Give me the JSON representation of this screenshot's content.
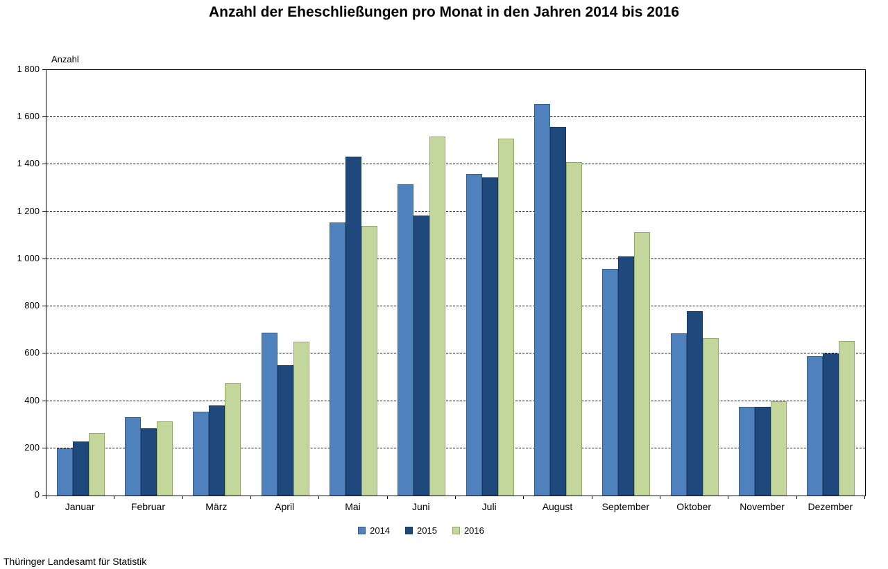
{
  "source_text": "Thüringer Landesamt für Statistik",
  "colors": {
    "axis": "#000000",
    "series_2014": "#4F81BD",
    "series_2014_border": "#385D8A",
    "series_2015": "#1F497D",
    "series_2015_border": "#17365D",
    "series_2016": "#C3D69B",
    "series_2016_border": "#94A86A"
  },
  "chart_data": {
    "type": "bar",
    "title": "Anzahl der Eheschließungen pro Monat in den Jahren 2014 bis 2016",
    "ylabel": "Anzahl",
    "xlabel": "",
    "ylim": [
      0,
      1800
    ],
    "ytick_step": 200,
    "ytick_labels": [
      "0",
      "200",
      "400",
      "600",
      "800",
      "1 000",
      "1 200",
      "1 400",
      "1 600",
      "1 800"
    ],
    "grid": "horizontal-dashed",
    "legend_position": "bottom-center",
    "categories": [
      "Januar",
      "Februar",
      "März",
      "April",
      "Mai",
      "Juni",
      "Juli",
      "August",
      "September",
      "Oktober",
      "November",
      "Dezember"
    ],
    "series": [
      {
        "name": "2014",
        "color": "#4F81BD",
        "border": "#385D8A",
        "values": [
          200,
          330,
          355,
          690,
          1155,
          1315,
          1360,
          1655,
          960,
          685,
          375,
          590
        ]
      },
      {
        "name": "2015",
        "color": "#1F497D",
        "border": "#17365D",
        "values": [
          230,
          285,
          380,
          550,
          1435,
          1185,
          1345,
          1560,
          1010,
          780,
          375,
          600
        ]
      },
      {
        "name": "2016",
        "color": "#C3D69B",
        "border": "#94A86A",
        "values": [
          265,
          315,
          475,
          650,
          1140,
          1520,
          1510,
          1410,
          1115,
          665,
          400,
          655
        ]
      }
    ]
  }
}
